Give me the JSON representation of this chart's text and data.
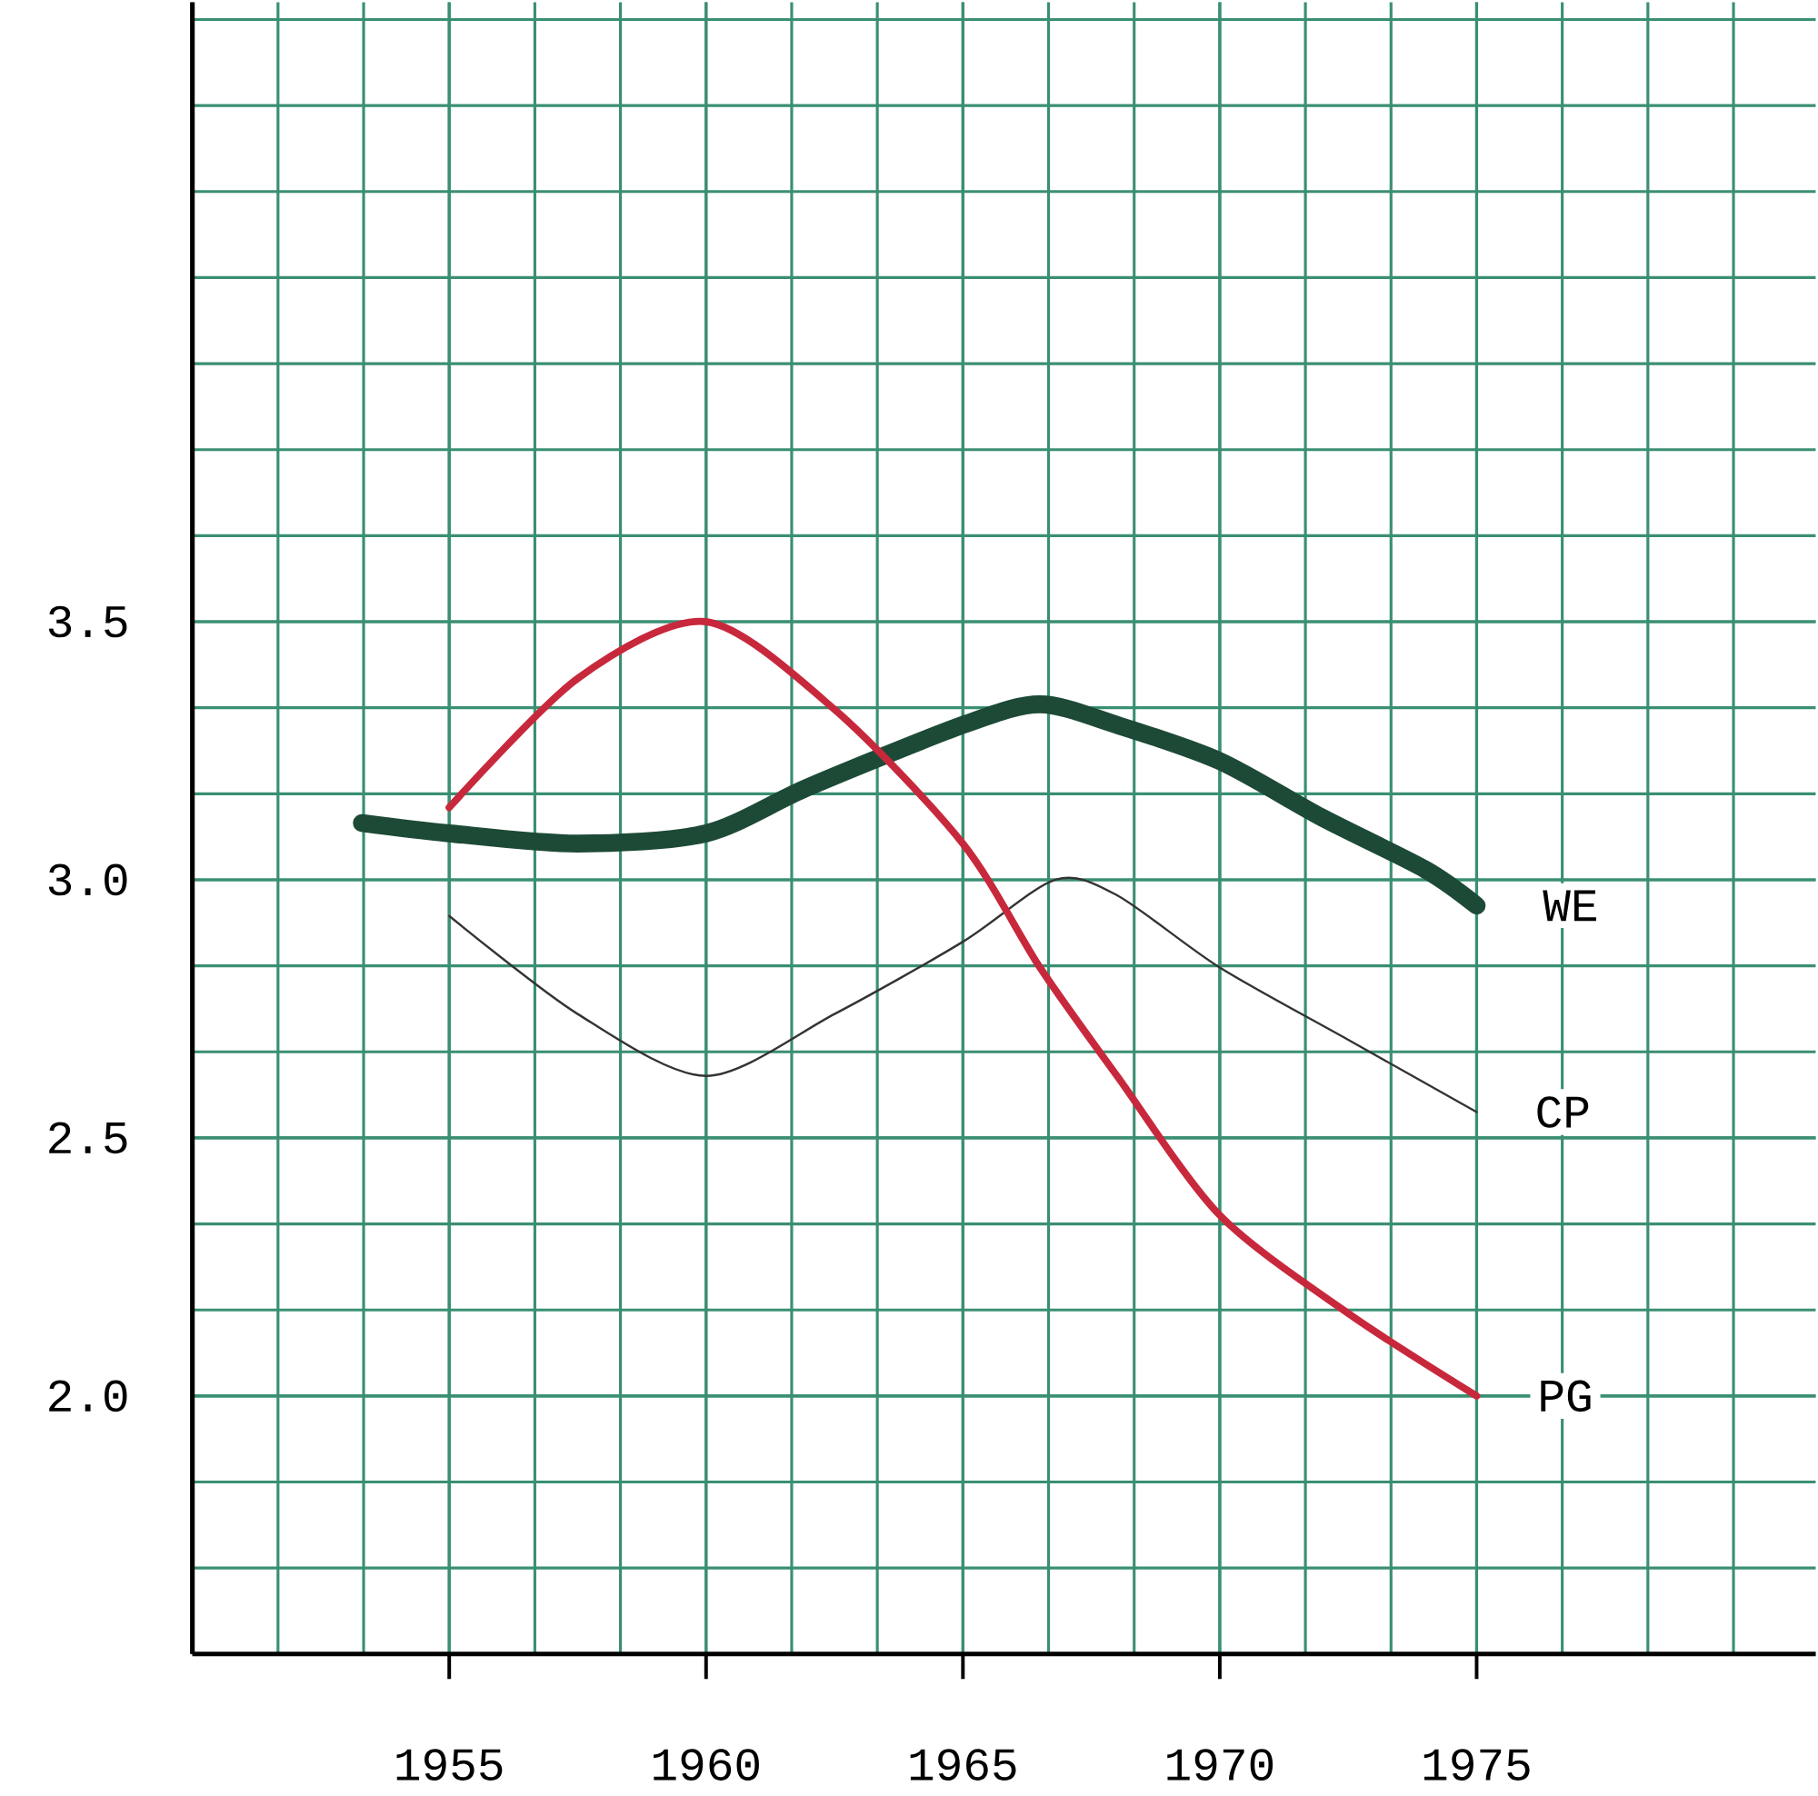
{
  "chart_data": {
    "type": "line",
    "series": [
      {
        "name": "WE",
        "color": "#1d4a36",
        "x": [
          1953.3,
          1955,
          1957.5,
          1960,
          1962,
          1965,
          1966.5,
          1968,
          1970,
          1972,
          1974,
          1975
        ],
        "values": [
          3.11,
          3.09,
          3.07,
          3.09,
          3.18,
          3.3,
          3.34,
          3.3,
          3.23,
          3.12,
          3.02,
          2.95
        ]
      },
      {
        "name": "CP",
        "color": "#333333",
        "x": [
          1955,
          1957.5,
          1960,
          1962.5,
          1965,
          1966.8,
          1968,
          1970,
          1972.5,
          1975
        ],
        "values": [
          2.93,
          2.74,
          2.62,
          2.74,
          2.88,
          3.0,
          2.97,
          2.83,
          2.69,
          2.55
        ]
      },
      {
        "name": "PG",
        "color": "#c8283c",
        "x": [
          1955,
          1957.5,
          1960,
          1962.5,
          1965,
          1966.5,
          1968,
          1970,
          1972.5,
          1975
        ],
        "values": [
          3.14,
          3.39,
          3.5,
          3.33,
          3.07,
          2.83,
          2.62,
          2.35,
          2.16,
          2.0
        ]
      }
    ],
    "xlim": [
      1950,
      1981.6
    ],
    "ylim": [
      1.5,
      4.7
    ],
    "xticks": [
      1955,
      1960,
      1965,
      1970,
      1975
    ],
    "yticks": [
      {
        "value": 2,
        "label": "2.0"
      },
      {
        "value": 2.5,
        "label": "2.5"
      },
      {
        "value": 3,
        "label": "3.0"
      },
      {
        "value": 3.5,
        "label": "3.5"
      }
    ],
    "grid": true
  }
}
